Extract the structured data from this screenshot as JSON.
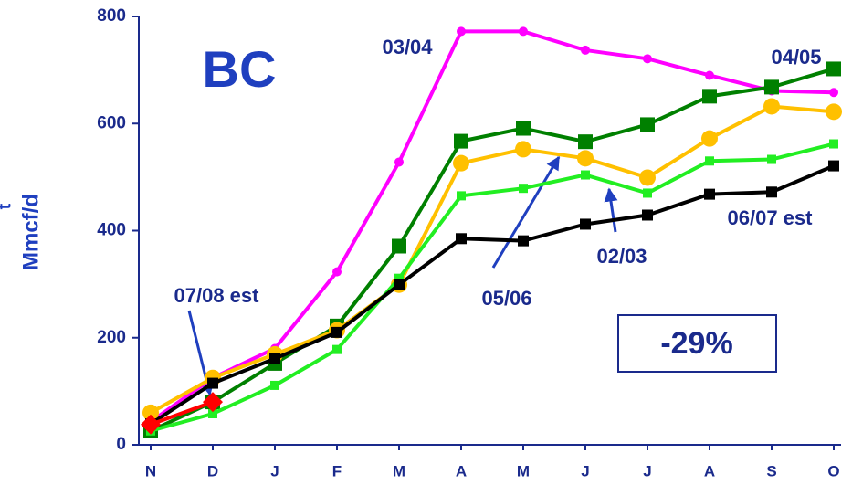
{
  "chart_data": {
    "type": "line",
    "title": "BC",
    "y_label": "Mmcf/d",
    "y_label_clipped": "t",
    "annotation": "-29%",
    "categories": [
      "N",
      "D",
      "J",
      "F",
      "M",
      "A",
      "M",
      "J",
      "J",
      "A",
      "S",
      "O"
    ],
    "ylim": [
      0,
      800
    ],
    "yticks": [
      0,
      200,
      400,
      600,
      800
    ],
    "series": [
      {
        "name": "03/04",
        "color": "#ff00ff",
        "marker": "circle",
        "values": [
          43,
          125,
          180,
          323,
          528,
          772,
          772,
          737,
          721,
          690,
          661,
          658
        ]
      },
      {
        "name": "04/05",
        "color": "#008000",
        "marker": "square",
        "values": [
          26,
          80,
          152,
          222,
          371,
          567,
          591,
          566,
          598,
          651,
          668,
          702
        ]
      },
      {
        "name": "05/06",
        "color": "#ffc000",
        "marker": "circle",
        "values": [
          60,
          125,
          169,
          214,
          299,
          526,
          552,
          535,
          499,
          572,
          632,
          622
        ]
      },
      {
        "name": "02/03",
        "color": "#22ee22",
        "marker": "square",
        "values": [
          26,
          58,
          111,
          178,
          311,
          465,
          479,
          504,
          470,
          530,
          533,
          562
        ]
      },
      {
        "name": "06/07 est",
        "color": "#000000",
        "marker": "square",
        "values": [
          39,
          115,
          161,
          210,
          299,
          385,
          381,
          412,
          429,
          468,
          472,
          521
        ]
      },
      {
        "name": "07/08 est",
        "color": "#ff0000",
        "marker": "diamond",
        "values": [
          38,
          80,
          null,
          null,
          null,
          null,
          null,
          null,
          null,
          null,
          null,
          null
        ]
      }
    ]
  }
}
